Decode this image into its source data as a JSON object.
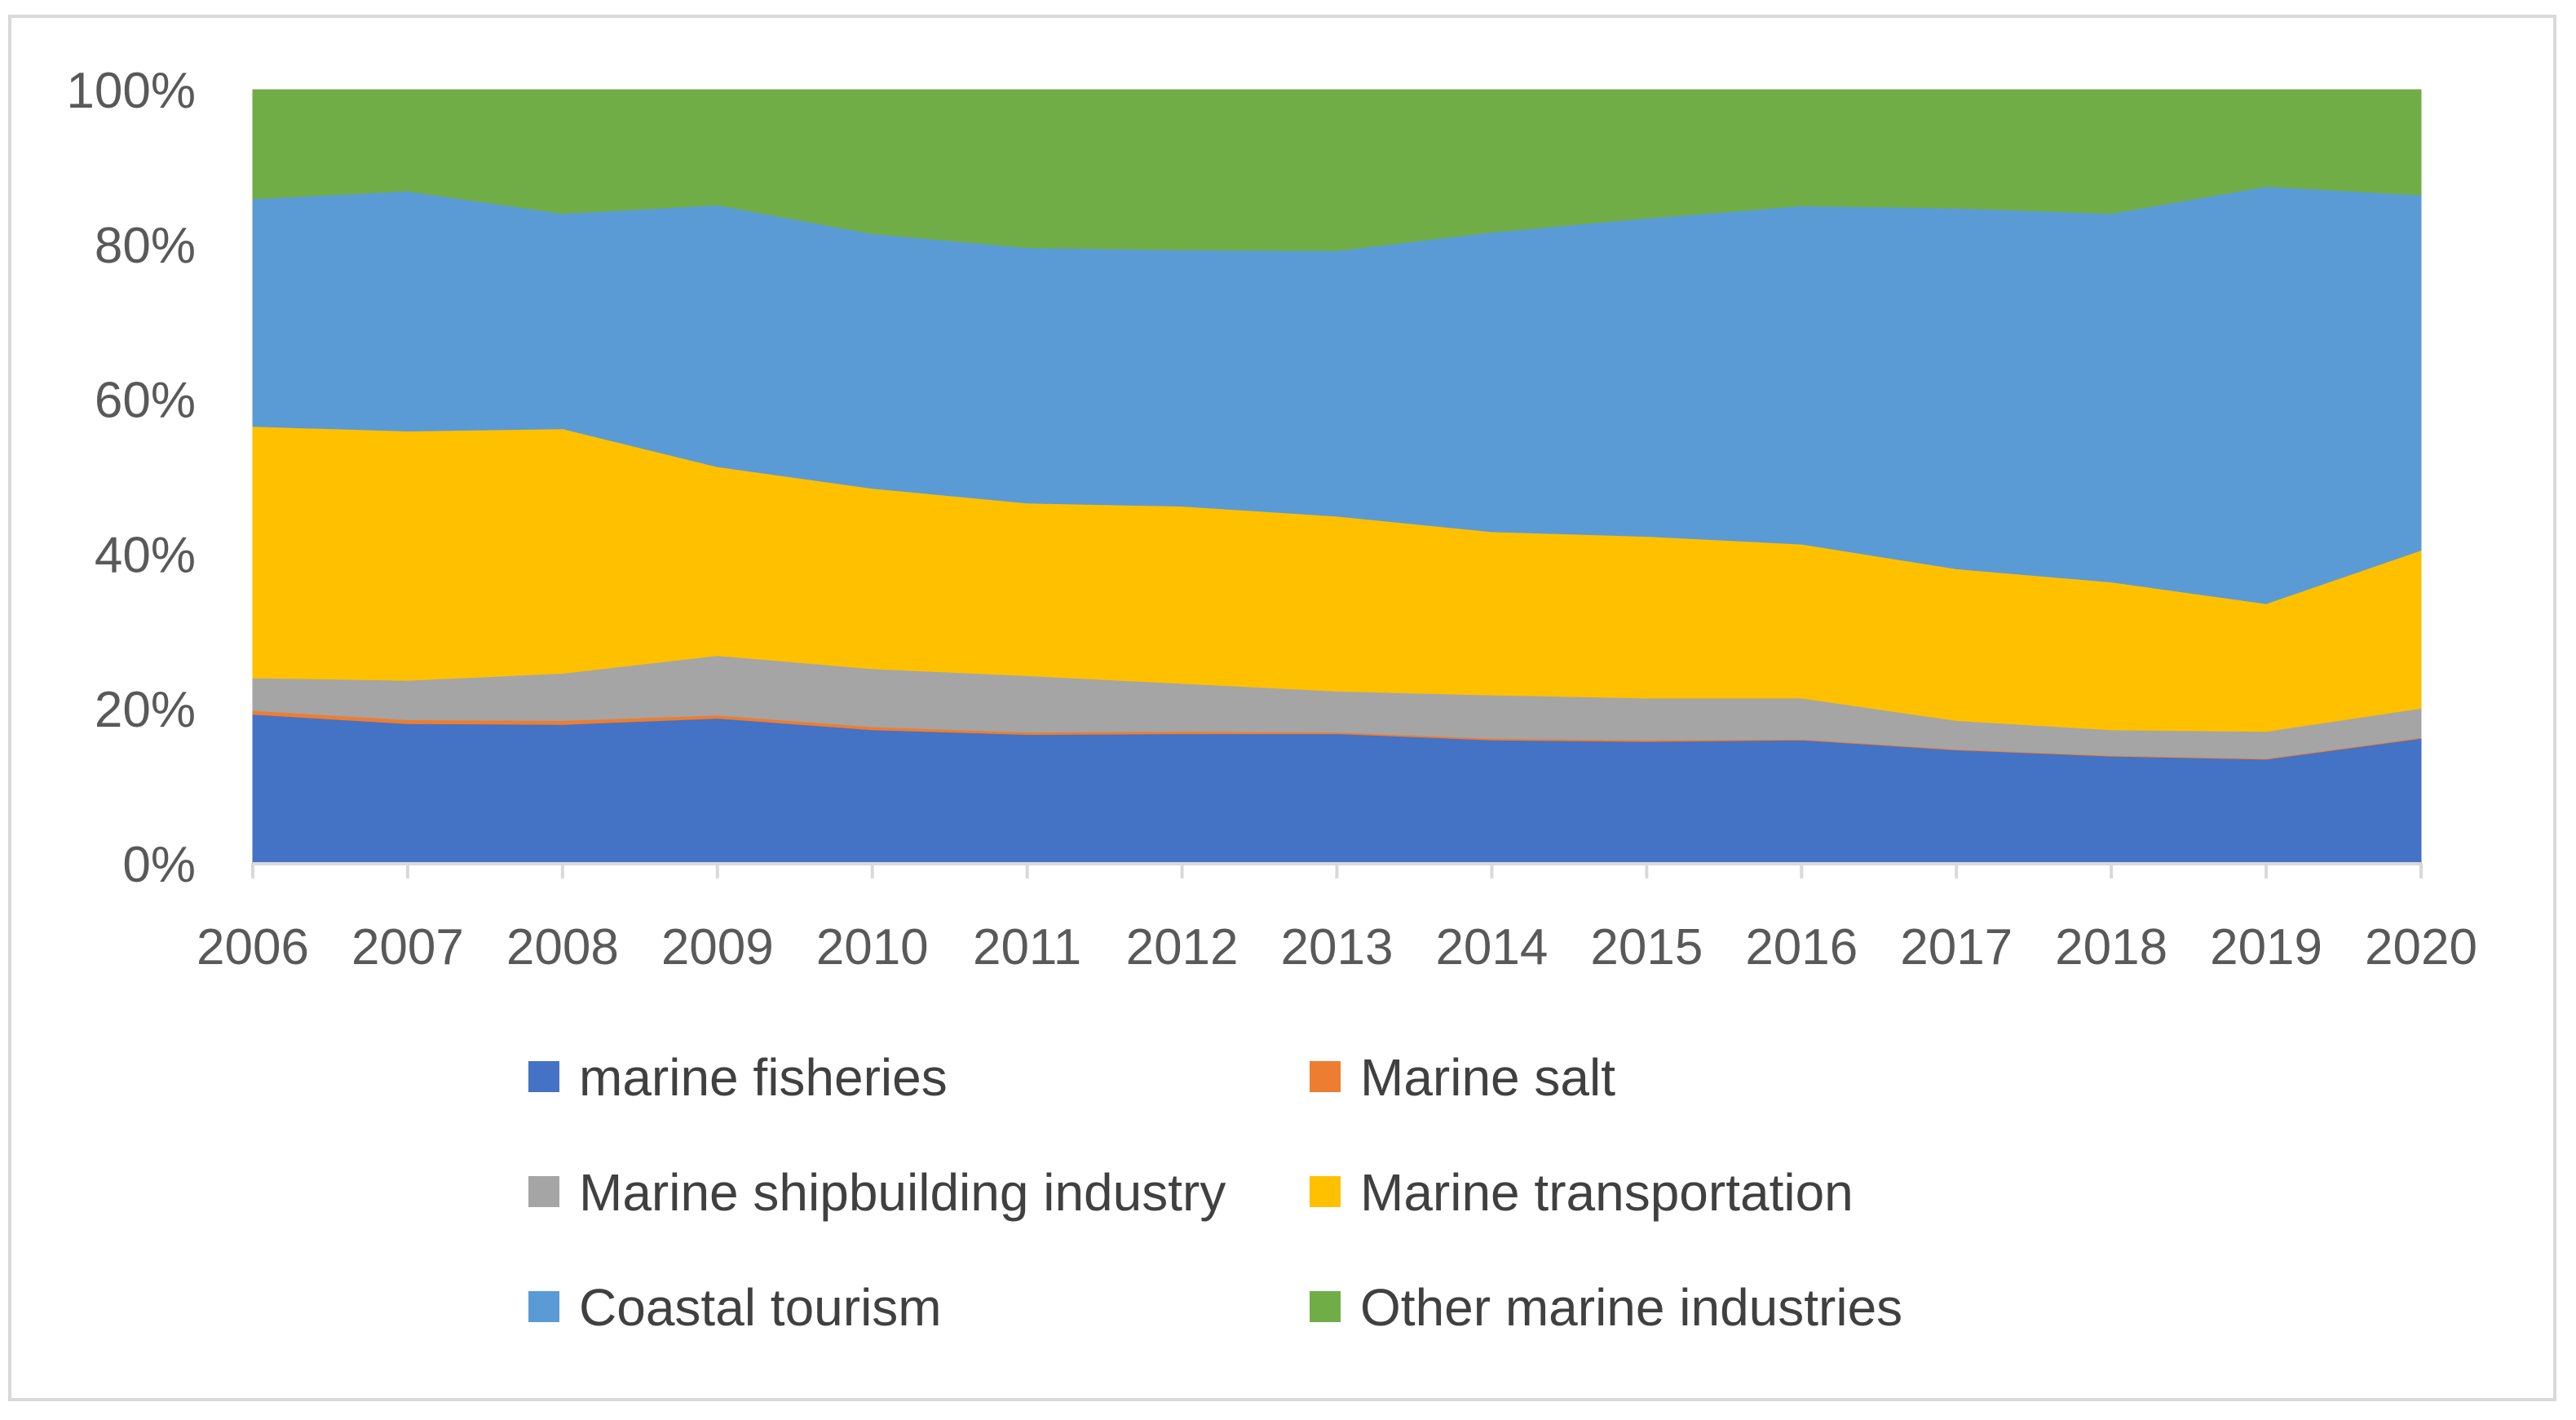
{
  "chart_data": {
    "type": "area",
    "stacked": true,
    "normalized": true,
    "title": "",
    "xlabel": "",
    "ylabel": "",
    "ylim": [
      0,
      100
    ],
    "y_ticks": [
      "0%",
      "20%",
      "40%",
      "60%",
      "80%",
      "100%"
    ],
    "y_tick_values": [
      0,
      20,
      40,
      60,
      80,
      100
    ],
    "categories": [
      "2006",
      "2007",
      "2008",
      "2009",
      "2010",
      "2011",
      "2012",
      "2013",
      "2014",
      "2015",
      "2016",
      "2017",
      "2018",
      "2019",
      "2020"
    ],
    "series": [
      {
        "name": "marine fisheries",
        "color": "#4472C4",
        "values": [
          19.3,
          18.1,
          18.0,
          18.8,
          17.3,
          16.7,
          16.8,
          16.8,
          16.0,
          15.8,
          16.0,
          14.7,
          13.9,
          13.5,
          16.2
        ]
      },
      {
        "name": "Marine salt",
        "color": "#ED7D31",
        "values": [
          0.5,
          0.5,
          0.5,
          0.4,
          0.4,
          0.3,
          0.3,
          0.2,
          0.2,
          0.2,
          0.1,
          0.1,
          0.1,
          0.1,
          0.1
        ]
      },
      {
        "name": "Marine shipbuilding industry",
        "color": "#A5A5A5",
        "values": [
          4.2,
          5.1,
          6.1,
          7.7,
          7.5,
          7.3,
          6.2,
          5.3,
          5.6,
          5.4,
          5.3,
          3.7,
          3.3,
          3.5,
          3.8
        ]
      },
      {
        "name": "Marine transportation",
        "color": "#FFC000",
        "values": [
          32.5,
          32.2,
          31.6,
          24.4,
          23.3,
          22.3,
          22.9,
          22.6,
          21.1,
          20.9,
          19.9,
          19.6,
          19.1,
          16.5,
          20.4
        ]
      },
      {
        "name": "Coastal tourism",
        "color": "#5B9BD5",
        "values": [
          29.4,
          31.0,
          27.8,
          33.8,
          32.9,
          33.0,
          33.1,
          34.3,
          38.7,
          41.1,
          43.7,
          46.6,
          47.6,
          53.9,
          45.9
        ]
      },
      {
        "name": "Other marine industries",
        "color": "#70AD47",
        "values": [
          14.1,
          13.1,
          16.0,
          14.9,
          18.6,
          20.4,
          20.7,
          20.8,
          18.4,
          16.6,
          15.0,
          15.3,
          16.0,
          12.5,
          13.6
        ]
      }
    ],
    "legend": {
      "position": "bottom",
      "columns": 2
    },
    "grid": false
  }
}
